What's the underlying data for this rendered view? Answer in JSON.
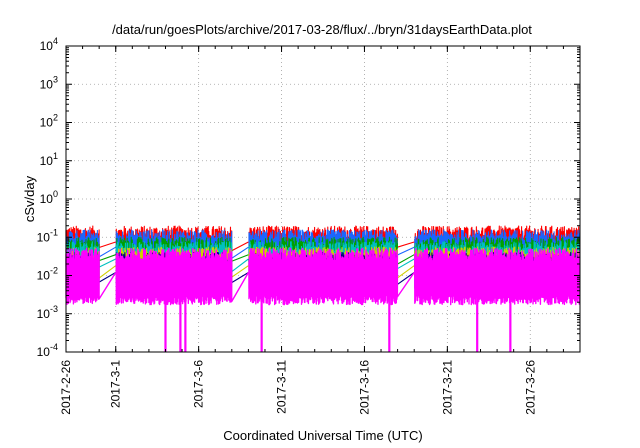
{
  "chart_data": {
    "type": "line",
    "title": "/data/run/goesPlots/archive/2017-03-28/flux/../bryn/31daysEarthData.plot",
    "xlabel": "Coordinated Universal Time (UTC)",
    "ylabel": "cSv/day",
    "yscale": "log",
    "ylim": [
      0.0001,
      10000
    ],
    "y_ticks": [
      {
        "value": 0.0001,
        "base": "10",
        "exp": "-4"
      },
      {
        "value": 0.001,
        "base": "10",
        "exp": "-3"
      },
      {
        "value": 0.01,
        "base": "10",
        "exp": "-2"
      },
      {
        "value": 0.1,
        "base": "10",
        "exp": "-1"
      },
      {
        "value": 1,
        "base": "10",
        "exp": "0"
      },
      {
        "value": 10,
        "base": "10",
        "exp": "1"
      },
      {
        "value": 100,
        "base": "10",
        "exp": "2"
      },
      {
        "value": 1000,
        "base": "10",
        "exp": "3"
      },
      {
        "value": 10000,
        "base": "10",
        "exp": "4"
      }
    ],
    "xlim": [
      "2017-02-26",
      "2017-03-29"
    ],
    "x_ticks": [
      "2017-2-26",
      "2017-3-1",
      "2017-3-6",
      "2017-3-11",
      "2017-3-16",
      "2017-3-21",
      "2017-3-26"
    ],
    "x_tick_dates": [
      "2017-02-26",
      "2017-03-01",
      "2017-03-06",
      "2017-03-11",
      "2017-03-16",
      "2017-03-21",
      "2017-03-26"
    ],
    "grid": true,
    "legend": "none",
    "data_gaps": [
      [
        "2017-02-28",
        "2017-03-01"
      ],
      [
        "2017-03-08",
        "2017-03-09"
      ],
      [
        "2017-03-18",
        "2017-03-19"
      ]
    ],
    "series": [
      {
        "color": "#ff0000",
        "typical_value": 0.075,
        "spread": 0.25
      },
      {
        "color": "#1a66ff",
        "typical_value": 0.055,
        "spread": 0.3
      },
      {
        "color": "#00a000",
        "typical_value": 0.035,
        "spread": 0.3
      },
      {
        "color": "#00c0c0",
        "typical_value": 0.027,
        "spread": 0.3
      },
      {
        "color": "#d0d000",
        "typical_value": 0.018,
        "spread": 0.35
      },
      {
        "color": "#000080",
        "typical_value": 0.012,
        "spread": 0.4
      },
      {
        "color": "#ff00ff",
        "typical_value": 0.012,
        "spread": 0.55
      }
    ],
    "dropouts": [
      {
        "date": "2017-03-04",
        "min_value": 0.0001
      },
      {
        "date": "2017-03-04.9",
        "min_value": 0.0001
      },
      {
        "date": "2017-03-05.2",
        "min_value": 0.0001
      },
      {
        "date": "2017-03-09.8",
        "min_value": 0.0001
      },
      {
        "date": "2017-03-17.5",
        "min_value": 0.0001
      },
      {
        "date": "2017-03-22.8",
        "min_value": 0.0001
      },
      {
        "date": "2017-03-24.8",
        "min_value": 0.0001
      }
    ]
  }
}
